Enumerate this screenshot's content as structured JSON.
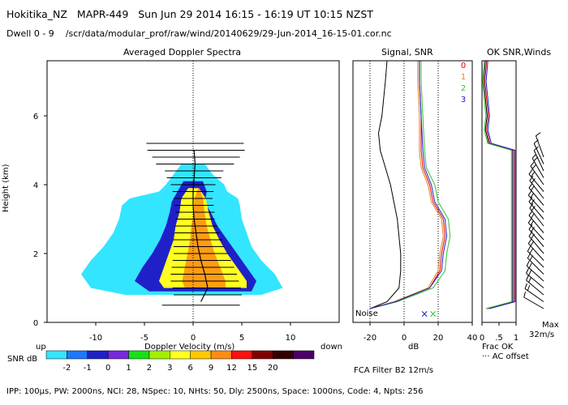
{
  "header": {
    "site": "Hokitika_NZ",
    "radar": "MAPR-449",
    "time": "Sun Jun 29 2014 16:15 - 16:19 UT 10:15 NZST",
    "dwell": "Dwell  0 - 9",
    "path": "/scr/data/modular_prof/raw/wind/20140629/29-Jun-2014_16-15-01.cor.nc"
  },
  "footer": {
    "params": "IPP: 100µs,  PW: 2000ns,  NCI: 28,  NSpec: 10, NHts: 50,  Dly: 2500ns,  Space: 1000ns,  Code: 4,  Npts: 256",
    "filter": "FCA Filter B2 12m/s"
  },
  "colors": {
    "snr_scale": [
      "#33e5ff",
      "#1c78ff",
      "#2020c8",
      "#7828e0",
      "#18e018",
      "#a0f000",
      "#ffff20",
      "#ffc800",
      "#ff8c10",
      "#ff1010",
      "#800000",
      "#300000",
      "#4a0068"
    ],
    "chan0": "#e00000",
    "chan1": "#e08020",
    "chan2": "#30c030",
    "chan3": "#2020c0"
  },
  "chart_data": [
    {
      "type": "heatmap",
      "title": "Averaged Doppler Spectra",
      "xlabel": "Doppler Velocity (m/s)",
      "ylabel": "Height (km)",
      "xlim": [
        -15,
        15
      ],
      "ylim": [
        0,
        7.6
      ],
      "xticks": [
        -10,
        -5,
        0,
        5,
        10
      ],
      "yticks": [
        0,
        2,
        4,
        6
      ],
      "x_end_labels": {
        "left": "up",
        "right": "down"
      },
      "snr_label": "SNR dB",
      "snr_colorbar": [
        "-2",
        "-1",
        "0",
        "1",
        "2",
        "3",
        "6",
        "9",
        "12",
        "15",
        "20"
      ],
      "spectral_contours_km": [
        {
          "level": "-2 dB",
          "heights": [
            0.8,
            1.0,
            1.4,
            1.8,
            2.2,
            2.6,
            3.0,
            3.4,
            3.6,
            3.8,
            4.0,
            4.3,
            4.6
          ],
          "left": [
            -7.0,
            -10.5,
            -11.5,
            -10.5,
            -9.2,
            -8.2,
            -7.6,
            -7.3,
            -6.5,
            -3.5,
            -2.8,
            -2.0,
            -1.2
          ],
          "right": [
            7.0,
            9.2,
            8.4,
            7.0,
            6.0,
            5.5,
            5.0,
            4.8,
            4.6,
            3.5,
            3.2,
            2.0,
            1.2
          ]
        },
        {
          "level": "0 dB",
          "heights": [
            0.9,
            1.2,
            1.6,
            2.0,
            2.4,
            2.8,
            3.2,
            3.5,
            3.8,
            4.1
          ],
          "left": [
            -4.5,
            -6.0,
            -5.2,
            -4.2,
            -3.4,
            -2.8,
            -2.4,
            -2.2,
            -1.6,
            -1.0
          ],
          "right": [
            6.0,
            6.5,
            5.5,
            4.5,
            3.5,
            2.5,
            1.8,
            1.2,
            1.4,
            1.0
          ]
        },
        {
          "level": "3 dB",
          "heights": [
            1.0,
            1.2,
            1.6,
            2.0,
            2.4,
            2.8,
            3.2,
            3.6,
            3.9
          ],
          "left": [
            -3.0,
            -3.5,
            -3.0,
            -2.5,
            -2.0,
            -1.8,
            -1.4,
            -1.2,
            -0.5
          ],
          "right": [
            5.5,
            5.5,
            4.5,
            3.5,
            2.7,
            2.0,
            1.6,
            1.3,
            0.6
          ]
        }
      ],
      "mean_velocity": {
        "heights": [
          0.6,
          1.0,
          1.4,
          1.8,
          2.2,
          2.6,
          3.0,
          3.4,
          3.8,
          4.2,
          4.6,
          5.0
        ],
        "values": [
          0.8,
          1.5,
          1.2,
          0.8,
          0.5,
          0.3,
          0.1,
          0.0,
          0.0,
          0.1,
          0.2,
          0.1
        ]
      },
      "spectral_width_bars": {
        "heights": [
          0.5,
          0.8,
          1.0,
          1.2,
          1.4,
          1.6,
          1.8,
          2.0,
          2.2,
          2.4,
          2.6,
          2.8,
          3.0,
          3.2,
          3.4,
          3.6,
          3.8,
          4.0,
          4.2,
          4.4,
          4.6,
          4.8,
          5.0,
          5.2
        ],
        "centers": [
          0.8,
          1.5,
          1.4,
          1.2,
          1.1,
          1.0,
          0.9,
          0.8,
          0.6,
          0.5,
          0.4,
          0.3,
          0.2,
          0.2,
          0.1,
          0.0,
          0.0,
          0.0,
          0.1,
          0.1,
          0.2,
          0.3,
          0.3,
          0.2
        ],
        "halfwidths": [
          4.0,
          3.5,
          3.5,
          3.5,
          3.4,
          3.2,
          3.0,
          2.8,
          2.6,
          2.5,
          2.3,
          2.2,
          2.0,
          2.0,
          2.0,
          2.0,
          2.1,
          2.3,
          2.8,
          3.0,
          4.0,
          4.5,
          5.0,
          5.0
        ]
      }
    },
    {
      "type": "line",
      "title": "Signal, SNR",
      "xlabel": "dB",
      "xlim": [
        -30,
        40
      ],
      "ylim": [
        0,
        7.6
      ],
      "xticks": [
        -20,
        0,
        20,
        40
      ],
      "noise_label": "Noise",
      "legend_labels": [
        "0",
        "1",
        "2",
        "3"
      ],
      "series": [
        {
          "name": "signal",
          "heights": [
            0.4,
            0.6,
            1.0,
            1.5,
            2.0,
            2.5,
            3.0,
            3.5,
            4.0,
            4.5,
            5.0,
            5.5,
            6.0,
            6.5,
            7.0,
            7.6
          ],
          "values": [
            -20,
            -10,
            -3,
            -2,
            -2,
            -3,
            -4,
            -6,
            -8,
            -11,
            -14,
            -15,
            -13,
            -12,
            -11,
            -10
          ]
        },
        {
          "name": "0",
          "heights": [
            0.4,
            0.6,
            1.0,
            1.5,
            2.0,
            2.5,
            3.0,
            3.5,
            4.0,
            4.5,
            5.0,
            5.5,
            6.0,
            6.5,
            7.0,
            7.6
          ],
          "values": [
            -20,
            -5,
            15,
            21,
            22,
            24,
            23,
            17,
            15,
            11,
            10,
            10,
            10,
            9.5,
            9,
            9
          ]
        },
        {
          "name": "1",
          "heights": [
            0.4,
            0.6,
            1.0,
            1.5,
            2.0,
            2.5,
            3.0,
            3.5,
            4.0,
            4.5,
            5.0,
            5.5,
            6.0,
            6.5,
            7.0,
            7.6
          ],
          "values": [
            -20,
            -6,
            14,
            20,
            21,
            23,
            22,
            16,
            14,
            10,
            9,
            9,
            9,
            8.5,
            8,
            8
          ]
        },
        {
          "name": "2",
          "heights": [
            0.4,
            0.6,
            1.0,
            1.5,
            2.0,
            2.5,
            3.0,
            3.5,
            4.0,
            4.5,
            5.0,
            5.5,
            6.0,
            6.5,
            7.0,
            7.6
          ],
          "values": [
            -20,
            -4,
            17,
            24,
            25,
            27,
            26,
            20,
            18,
            13,
            12,
            11.5,
            11,
            10.5,
            10,
            10
          ]
        },
        {
          "name": "3",
          "heights": [
            0.4,
            0.6,
            1.0,
            1.5,
            2.0,
            2.5,
            3.0,
            3.5,
            4.0,
            4.5,
            5.0,
            5.5,
            6.0,
            6.5,
            7.0,
            7.6
          ],
          "values": [
            -20,
            -5,
            15,
            22,
            23,
            25,
            24,
            18,
            16,
            12,
            11,
            10.5,
            10,
            9.5,
            9,
            9
          ]
        }
      ]
    },
    {
      "type": "line",
      "title": "OK SNR,Winds",
      "xlabel": "Frac OK",
      "xlim": [
        0,
        1
      ],
      "ylim": [
        0,
        7.6
      ],
      "xticks": [
        0,
        0.5,
        1
      ],
      "xtick_labels": [
        "0",
        ".5",
        "1"
      ],
      "offset_label": "··· AC offset",
      "max_wind_label": "Max",
      "max_wind_value": "32m/s",
      "series": [
        {
          "name": "frac_ok",
          "heights": [
            0.4,
            0.6,
            1.0,
            2.0,
            3.0,
            4.0,
            4.8,
            5.0,
            5.2,
            5.6,
            6.0,
            6.5,
            7.0,
            7.6
          ],
          "values": [
            0.15,
            0.9,
            0.9,
            0.9,
            0.9,
            0.9,
            0.9,
            0.9,
            0.2,
            0.1,
            0.15,
            0.1,
            0.05,
            0.1
          ]
        }
      ],
      "wind_barbs": {
        "heights": [
          0.4,
          0.6,
          0.8,
          1.0,
          1.2,
          1.4,
          1.6,
          1.8,
          2.0,
          2.2,
          2.4,
          2.6,
          2.8,
          3.0,
          3.2,
          3.4,
          3.6,
          3.8,
          4.0,
          4.2,
          4.4,
          4.6,
          4.8
        ],
        "direction_deg": [
          300,
          305,
          310,
          310,
          312,
          315,
          315,
          318,
          320,
          320,
          318,
          320,
          322,
          320,
          318,
          320,
          322,
          320,
          325,
          330,
          335,
          335,
          340
        ],
        "speed_ms": [
          18,
          20,
          22,
          24,
          25,
          26,
          27,
          28,
          28,
          28,
          28,
          28,
          28,
          28,
          28,
          26,
          25,
          25,
          22,
          20,
          18,
          16,
          14
        ]
      }
    }
  ]
}
